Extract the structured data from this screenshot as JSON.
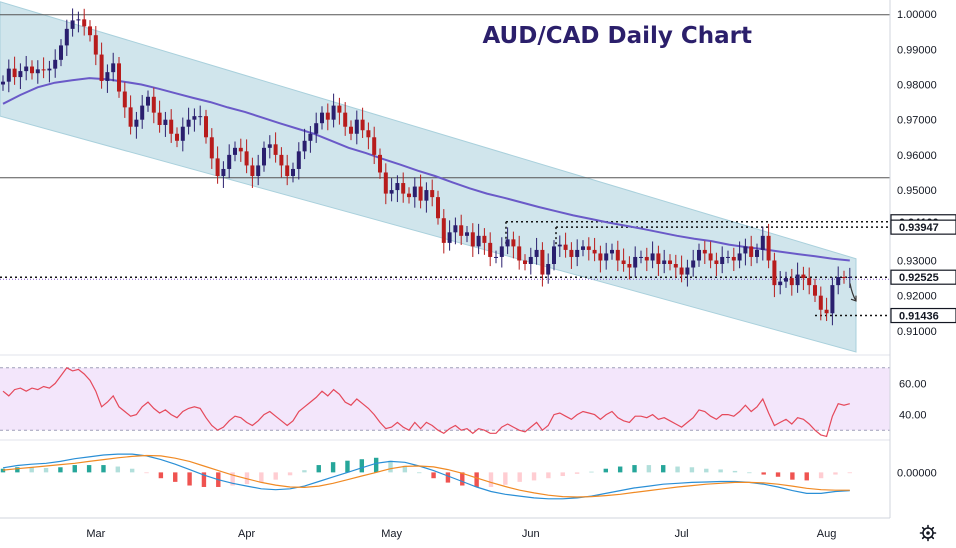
{
  "title": "AUD/CAD Daily Chart",
  "colors": {
    "bull": "#2a1f6e",
    "bear": "#b71c1c",
    "channel": "#a9d0dc",
    "ma": "#6a5ac8",
    "rsi_line": "#e5495b",
    "rsi_band": "#f3e6fb",
    "macd": "#2a8fd6",
    "signal": "#f08a24",
    "hist_pos": "#26a69a",
    "hist_pos_light": "#b2dfdb",
    "hist_neg": "#ef5350",
    "hist_neg_light": "#ffcdd2"
  },
  "price_axis": {
    "labels": [
      "1.00000",
      "0.99000",
      "0.98000",
      "0.97000",
      "0.96000",
      "0.95000",
      "0.93000",
      "0.92000",
      "0.91000"
    ],
    "tags": [
      "0.94100",
      "0.93947",
      "0.92525",
      "0.91436"
    ]
  },
  "rsi_axis": {
    "labels": [
      "60.00",
      "40.00"
    ]
  },
  "macd_axis": {
    "labels": [
      "0.00000"
    ]
  },
  "time_axis": {
    "labels": [
      "Mar",
      "Apr",
      "May",
      "Jun",
      "Jul",
      "Aug"
    ]
  },
  "settings_icon": "gear-icon",
  "chart_data": [
    {
      "type": "candlestick",
      "title": "AUD/CAD Daily Chart",
      "x_ticks": [
        "Mar",
        "Apr",
        "May",
        "Jun",
        "Jul",
        "Aug"
      ],
      "y_ticks": [
        1.0,
        0.99,
        0.98,
        0.97,
        0.96,
        0.95,
        0.93,
        0.92,
        0.91
      ],
      "ylim": [
        0.904,
        1.004
      ],
      "horizontal_levels": [
        0.9998,
        0.9535,
        0.941,
        0.93947,
        0.92525,
        0.91436
      ],
      "tagged_levels": [
        0.941,
        0.93947,
        0.92525,
        0.91436
      ],
      "channel": {
        "upper_start": 1.0035,
        "upper_end": 0.9305,
        "lower_start": 0.971,
        "lower_end": 0.904
      },
      "close": [
        0.9808,
        0.9845,
        0.9821,
        0.9838,
        0.9851,
        0.9832,
        0.9843,
        0.984,
        0.9845,
        0.987,
        0.9911,
        0.9958,
        0.9982,
        0.9985,
        0.9965,
        0.994,
        0.9885,
        0.981,
        0.9835,
        0.986,
        0.978,
        0.9735,
        0.968,
        0.97,
        0.974,
        0.9765,
        0.972,
        0.9685,
        0.97,
        0.966,
        0.964,
        0.968,
        0.97,
        0.971,
        0.971,
        0.965,
        0.959,
        0.954,
        0.956,
        0.96,
        0.962,
        0.961,
        0.957,
        0.954,
        0.957,
        0.962,
        0.963,
        0.96,
        0.957,
        0.954,
        0.956,
        0.961,
        0.964,
        0.966,
        0.969,
        0.972,
        0.97,
        0.974,
        0.972,
        0.968,
        0.966,
        0.97,
        0.967,
        0.965,
        0.96,
        0.955,
        0.949,
        0.95,
        0.952,
        0.949,
        0.948,
        0.951,
        0.947,
        0.95,
        0.948,
        0.942,
        0.935,
        0.938,
        0.94,
        0.937,
        0.938,
        0.934,
        0.937,
        0.935,
        0.931,
        0.931,
        0.934,
        0.936,
        0.934,
        0.93,
        0.929,
        0.931,
        0.933,
        0.926,
        0.929,
        0.934,
        0.9345,
        0.933,
        0.931,
        0.933,
        0.934,
        0.933,
        0.932,
        0.93,
        0.932,
        0.933,
        0.93,
        0.929,
        0.928,
        0.931,
        0.931,
        0.93,
        0.932,
        0.929,
        0.93,
        0.929,
        0.928,
        0.926,
        0.928,
        0.93,
        0.933,
        0.932,
        0.93,
        0.929,
        0.931,
        0.931,
        0.93,
        0.932,
        0.934,
        0.931,
        0.933,
        0.937,
        0.93,
        0.923,
        0.924,
        0.925,
        0.923,
        0.926,
        0.925,
        0.923,
        0.92,
        0.916,
        0.915,
        0.923,
        0.9253,
        0.9252,
        0.9253
      ],
      "open": [
        0.98,
        0.9808,
        0.9845,
        0.9821,
        0.9838,
        0.9851,
        0.9832,
        0.9843,
        0.984,
        0.9845,
        0.987,
        0.9911,
        0.9958,
        0.9982,
        0.9985,
        0.9965,
        0.994,
        0.9885,
        0.981,
        0.9835,
        0.986,
        0.978,
        0.9735,
        0.968,
        0.97,
        0.974,
        0.9765,
        0.972,
        0.9685,
        0.97,
        0.966,
        0.964,
        0.968,
        0.97,
        0.971,
        0.971,
        0.965,
        0.959,
        0.954,
        0.956,
        0.96,
        0.962,
        0.961,
        0.957,
        0.954,
        0.957,
        0.962,
        0.963,
        0.96,
        0.957,
        0.954,
        0.956,
        0.961,
        0.964,
        0.966,
        0.969,
        0.972,
        0.97,
        0.974,
        0.972,
        0.968,
        0.966,
        0.97,
        0.967,
        0.965,
        0.96,
        0.955,
        0.949,
        0.95,
        0.952,
        0.949,
        0.948,
        0.951,
        0.947,
        0.95,
        0.948,
        0.942,
        0.935,
        0.938,
        0.94,
        0.937,
        0.938,
        0.934,
        0.937,
        0.935,
        0.931,
        0.931,
        0.934,
        0.936,
        0.934,
        0.93,
        0.929,
        0.931,
        0.933,
        0.926,
        0.929,
        0.934,
        0.9345,
        0.933,
        0.931,
        0.933,
        0.934,
        0.933,
        0.932,
        0.93,
        0.932,
        0.933,
        0.93,
        0.929,
        0.928,
        0.931,
        0.931,
        0.93,
        0.932,
        0.929,
        0.93,
        0.929,
        0.928,
        0.926,
        0.928,
        0.93,
        0.933,
        0.932,
        0.93,
        0.929,
        0.931,
        0.931,
        0.93,
        0.932,
        0.934,
        0.931,
        0.933,
        0.937,
        0.93,
        0.923,
        0.924,
        0.925,
        0.923,
        0.926,
        0.925,
        0.923,
        0.92,
        0.916,
        0.915,
        0.923,
        0.9253,
        0.9252
      ],
      "moving_average": [
        0.9745,
        0.977,
        0.9792,
        0.9805,
        0.9812,
        0.9818,
        0.9815,
        0.9808,
        0.98,
        0.9788,
        0.9775,
        0.9762,
        0.975,
        0.9735,
        0.9722,
        0.9706,
        0.969,
        0.9675,
        0.966,
        0.964,
        0.962,
        0.9605,
        0.9588,
        0.9572,
        0.9555,
        0.954,
        0.9522,
        0.9505,
        0.949,
        0.9478,
        0.9465,
        0.9452,
        0.944,
        0.9428,
        0.9418,
        0.9408,
        0.9399,
        0.939,
        0.938,
        0.937,
        0.9362,
        0.9355,
        0.9345,
        0.9338,
        0.9332,
        0.9325,
        0.9318,
        0.9312,
        0.9305,
        0.93
      ],
      "rsi": {
        "ylim": [
          25,
          75
        ],
        "levels": [
          70,
          30
        ],
        "values": [
          55,
          52,
          56,
          57,
          55,
          57,
          56,
          58,
          57,
          60,
          65,
          70,
          68,
          69,
          66,
          62,
          55,
          45,
          48,
          52,
          45,
          42,
          39,
          40,
          45,
          48,
          44,
          41,
          43,
          40,
          38,
          42,
          44,
          45,
          44,
          38,
          33,
          30,
          32,
          36,
          39,
          38,
          35,
          33,
          36,
          40,
          42,
          39,
          36,
          33,
          36,
          42,
          45,
          48,
          51,
          55,
          52,
          56,
          53,
          48,
          46,
          50,
          47,
          44,
          40,
          35,
          31,
          32,
          35,
          32,
          30,
          35,
          31,
          35,
          33,
          30,
          28,
          31,
          33,
          30,
          31,
          28,
          31,
          30,
          28,
          28,
          32,
          34,
          32,
          30,
          29,
          32,
          35,
          30,
          33,
          40,
          41,
          39,
          37,
          40,
          42,
          41,
          40,
          37,
          40,
          42,
          38,
          36,
          35,
          39,
          39,
          38,
          40,
          37,
          38,
          36,
          34,
          32,
          35,
          38,
          43,
          42,
          39,
          37,
          40,
          40,
          39,
          42,
          46,
          42,
          45,
          50,
          41,
          33,
          35,
          37,
          34,
          38,
          37,
          34,
          30,
          27,
          26,
          39,
          47,
          46,
          47
        ]
      },
      "macd": {
        "ylim": [
          -0.01,
          0.006
        ],
        "macd": [
          0.001,
          0.0015,
          0.0018,
          0.002,
          0.0024,
          0.003,
          0.0034,
          0.0038,
          0.004,
          0.004,
          0.0036,
          0.0028,
          0.0018,
          0.0006,
          -0.0006,
          -0.0016,
          -0.0024,
          -0.003,
          -0.0036,
          -0.0038,
          -0.0036,
          -0.003,
          -0.002,
          -0.001,
          0.0,
          0.001,
          0.002,
          0.0024,
          0.0022,
          0.0014,
          0.0004,
          -0.0008,
          -0.002,
          -0.0032,
          -0.0042,
          -0.0048,
          -0.0052,
          -0.0056,
          -0.0058,
          -0.0058,
          -0.0056,
          -0.0052,
          -0.0046,
          -0.004,
          -0.0034,
          -0.003,
          -0.0026,
          -0.0024,
          -0.0022,
          -0.0021,
          -0.002,
          -0.002,
          -0.0022,
          -0.0026,
          -0.0032,
          -0.004,
          -0.0046,
          -0.0046,
          -0.0042,
          -0.004
        ],
        "signal": [
          0.0005,
          0.0008,
          0.0011,
          0.0014,
          0.0017,
          0.002,
          0.0024,
          0.0028,
          0.0032,
          0.0035,
          0.0037,
          0.0036,
          0.0031,
          0.0024,
          0.0014,
          0.0004,
          -0.0006,
          -0.0014,
          -0.0022,
          -0.0028,
          -0.0032,
          -0.0033,
          -0.003,
          -0.0024,
          -0.0016,
          -0.0008,
          0.0,
          0.0008,
          0.0013,
          0.0014,
          0.0012,
          0.0006,
          -0.0002,
          -0.0012,
          -0.0022,
          -0.0031,
          -0.0039,
          -0.0045,
          -0.005,
          -0.0053,
          -0.0054,
          -0.0053,
          -0.0051,
          -0.0048,
          -0.0044,
          -0.004,
          -0.0036,
          -0.0032,
          -0.0029,
          -0.0026,
          -0.0024,
          -0.0022,
          -0.0022,
          -0.0023,
          -0.0026,
          -0.003,
          -0.0035,
          -0.0038,
          -0.0039,
          -0.0039
        ]
      }
    }
  ]
}
